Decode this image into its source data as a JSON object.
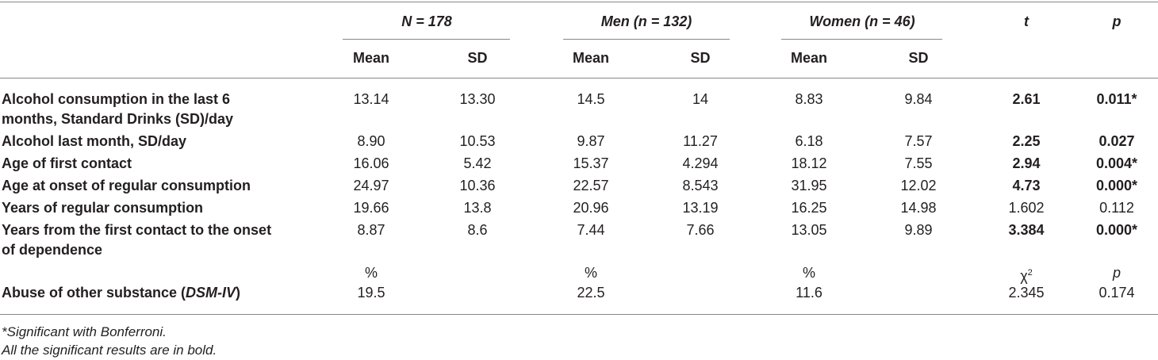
{
  "table": {
    "header": {
      "groups": [
        "N = 178",
        "Men (n = 132)",
        "Women (n = 46)"
      ],
      "t": "t",
      "p": "p",
      "subheaders": [
        "Mean",
        "SD",
        "Mean",
        "SD",
        "Mean",
        "SD"
      ]
    },
    "rows": [
      {
        "label": "Alcohol consumption in the last 6 months, Standard Drinks (SD)/day",
        "cells": [
          "13.14",
          "13.30",
          "14.5",
          "14",
          "8.83",
          "9.84",
          "2.61",
          "0.011*"
        ],
        "bold_cells": [
          6,
          7
        ]
      },
      {
        "label": "Alcohol last month, SD/day",
        "cells": [
          "8.90",
          "10.53",
          "9.87",
          "11.27",
          "6.18",
          "7.57",
          "2.25",
          "0.027"
        ],
        "bold_cells": [
          6,
          7
        ]
      },
      {
        "label": "Age of first contact",
        "cells": [
          "16.06",
          "5.42",
          "15.37",
          "4.294",
          "18.12",
          "7.55",
          "2.94",
          "0.004*"
        ],
        "bold_cells": [
          6,
          7
        ]
      },
      {
        "label": "Age at onset of regular consumption",
        "cells": [
          "24.97",
          "10.36",
          "22.57",
          "8.543",
          "31.95",
          "12.02",
          "4.73",
          "0.000*"
        ],
        "bold_cells": [
          6,
          7
        ]
      },
      {
        "label": "Years of regular consumption",
        "cells": [
          "19.66",
          "13.8",
          "20.96",
          "13.19",
          "16.25",
          "14.98",
          "1.602",
          "0.112"
        ],
        "bold_cells": []
      },
      {
        "label": "Years from the first contact to the onset of dependence",
        "cells": [
          "8.87",
          "8.6",
          "7.44",
          "7.66",
          "13.05",
          "9.89",
          "3.384",
          "0.000*"
        ],
        "bold_cells": [
          6,
          7
        ]
      }
    ],
    "percent_header": {
      "cells": [
        "%",
        "%",
        "%"
      ],
      "chi": "χ",
      "chi_sup": "2",
      "p": "p"
    },
    "abuse_row": {
      "label": "Abuse of other substance (",
      "label_italic": "DSM-IV",
      "label_end": ")",
      "cells": [
        "19.5",
        "22.5",
        "11.6",
        "2.345",
        "0.174"
      ]
    }
  },
  "footnotes": [
    "*Significant with Bonferroni.",
    "All the significant results are in bold."
  ]
}
